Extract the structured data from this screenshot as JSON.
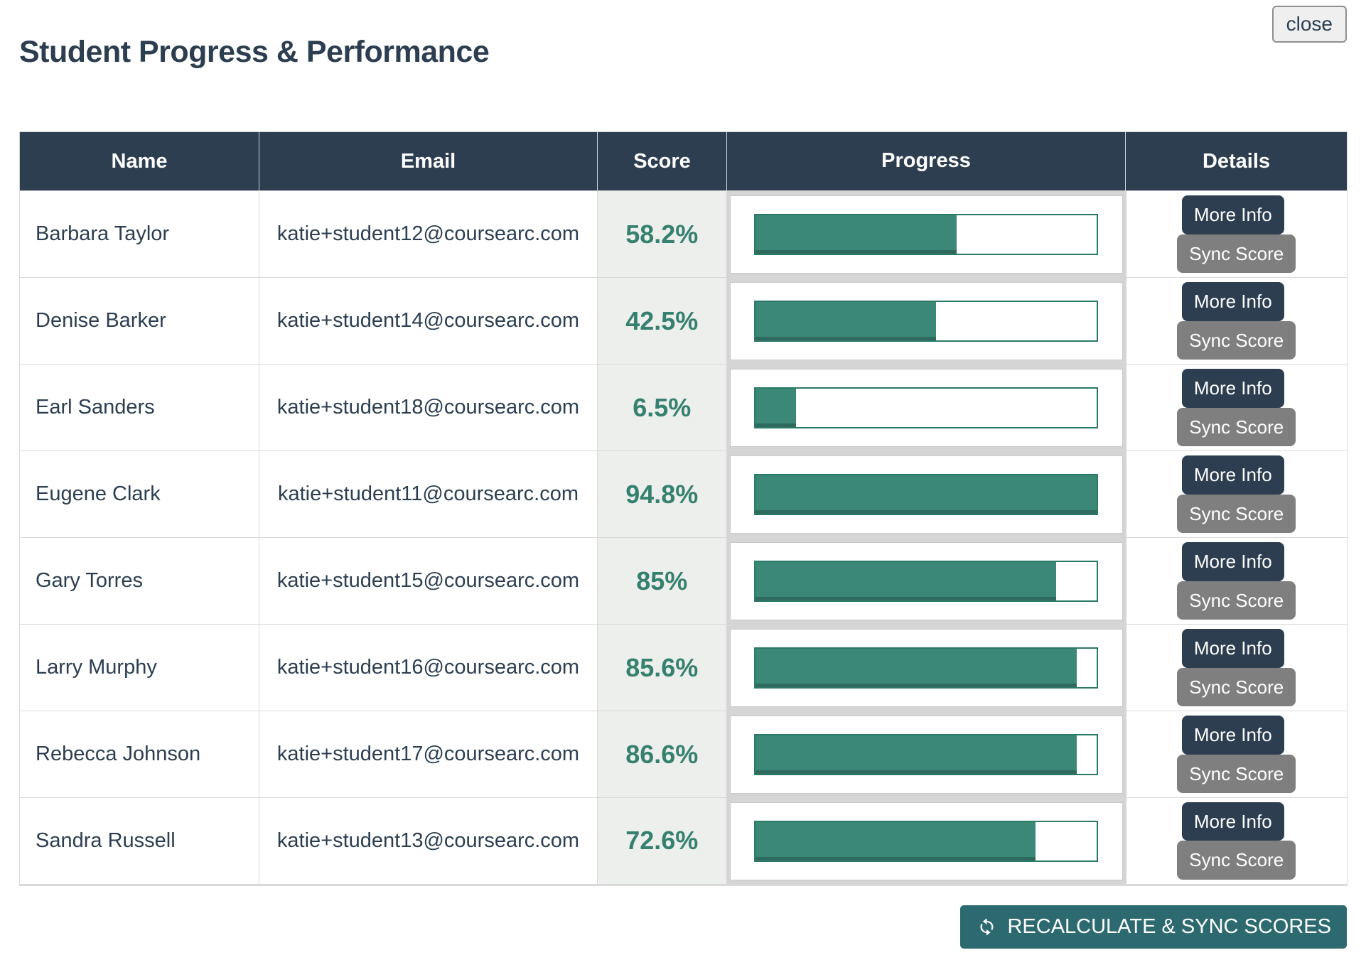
{
  "page": {
    "title": "Student Progress & Performance",
    "close_label": "close"
  },
  "colors": {
    "navy": "#2c3e50",
    "teal-text": "#35806e",
    "bar-fill": "#3b8877",
    "bar-fill-edge": "#2e6b5e",
    "bar-border": "#2b7a67",
    "score-bg": "#edefec",
    "grid": "#d9d9d9",
    "progress-gap": "#d5d5d5",
    "btn-gray": "#7f7f7f",
    "footer-teal": "#2d6a70",
    "close-bg": "#efefef",
    "close-border": "#8f8f8f"
  },
  "table": {
    "columns": [
      "Name",
      "Email",
      "Score",
      "Progress",
      "Details"
    ],
    "buttons": {
      "more_info": "More Info",
      "sync_score": "Sync Score"
    },
    "rows": [
      {
        "name": "Barbara Taylor",
        "email": "katie+student12@coursearc.com",
        "score": "58.2%",
        "progress_pct": 59
      },
      {
        "name": "Denise Barker",
        "email": "katie+student14@coursearc.com",
        "score": "42.5%",
        "progress_pct": 53
      },
      {
        "name": "Earl Sanders",
        "email": "katie+student18@coursearc.com",
        "score": "6.5%",
        "progress_pct": 12
      },
      {
        "name": "Eugene Clark",
        "email": "katie+student11@coursearc.com",
        "score": "94.8%",
        "progress_pct": 100
      },
      {
        "name": "Gary Torres",
        "email": "katie+student15@coursearc.com",
        "score": "85%",
        "progress_pct": 88
      },
      {
        "name": "Larry Murphy",
        "email": "katie+student16@coursearc.com",
        "score": "85.6%",
        "progress_pct": 94
      },
      {
        "name": "Rebecca Johnson",
        "email": "katie+student17@coursearc.com",
        "score": "86.6%",
        "progress_pct": 94
      },
      {
        "name": "Sandra Russell",
        "email": "katie+student13@coursearc.com",
        "score": "72.6%",
        "progress_pct": 82
      }
    ]
  },
  "footer": {
    "recalc_label": "RECALCULATE & SYNC SCORES",
    "icon": "refresh-icon"
  }
}
